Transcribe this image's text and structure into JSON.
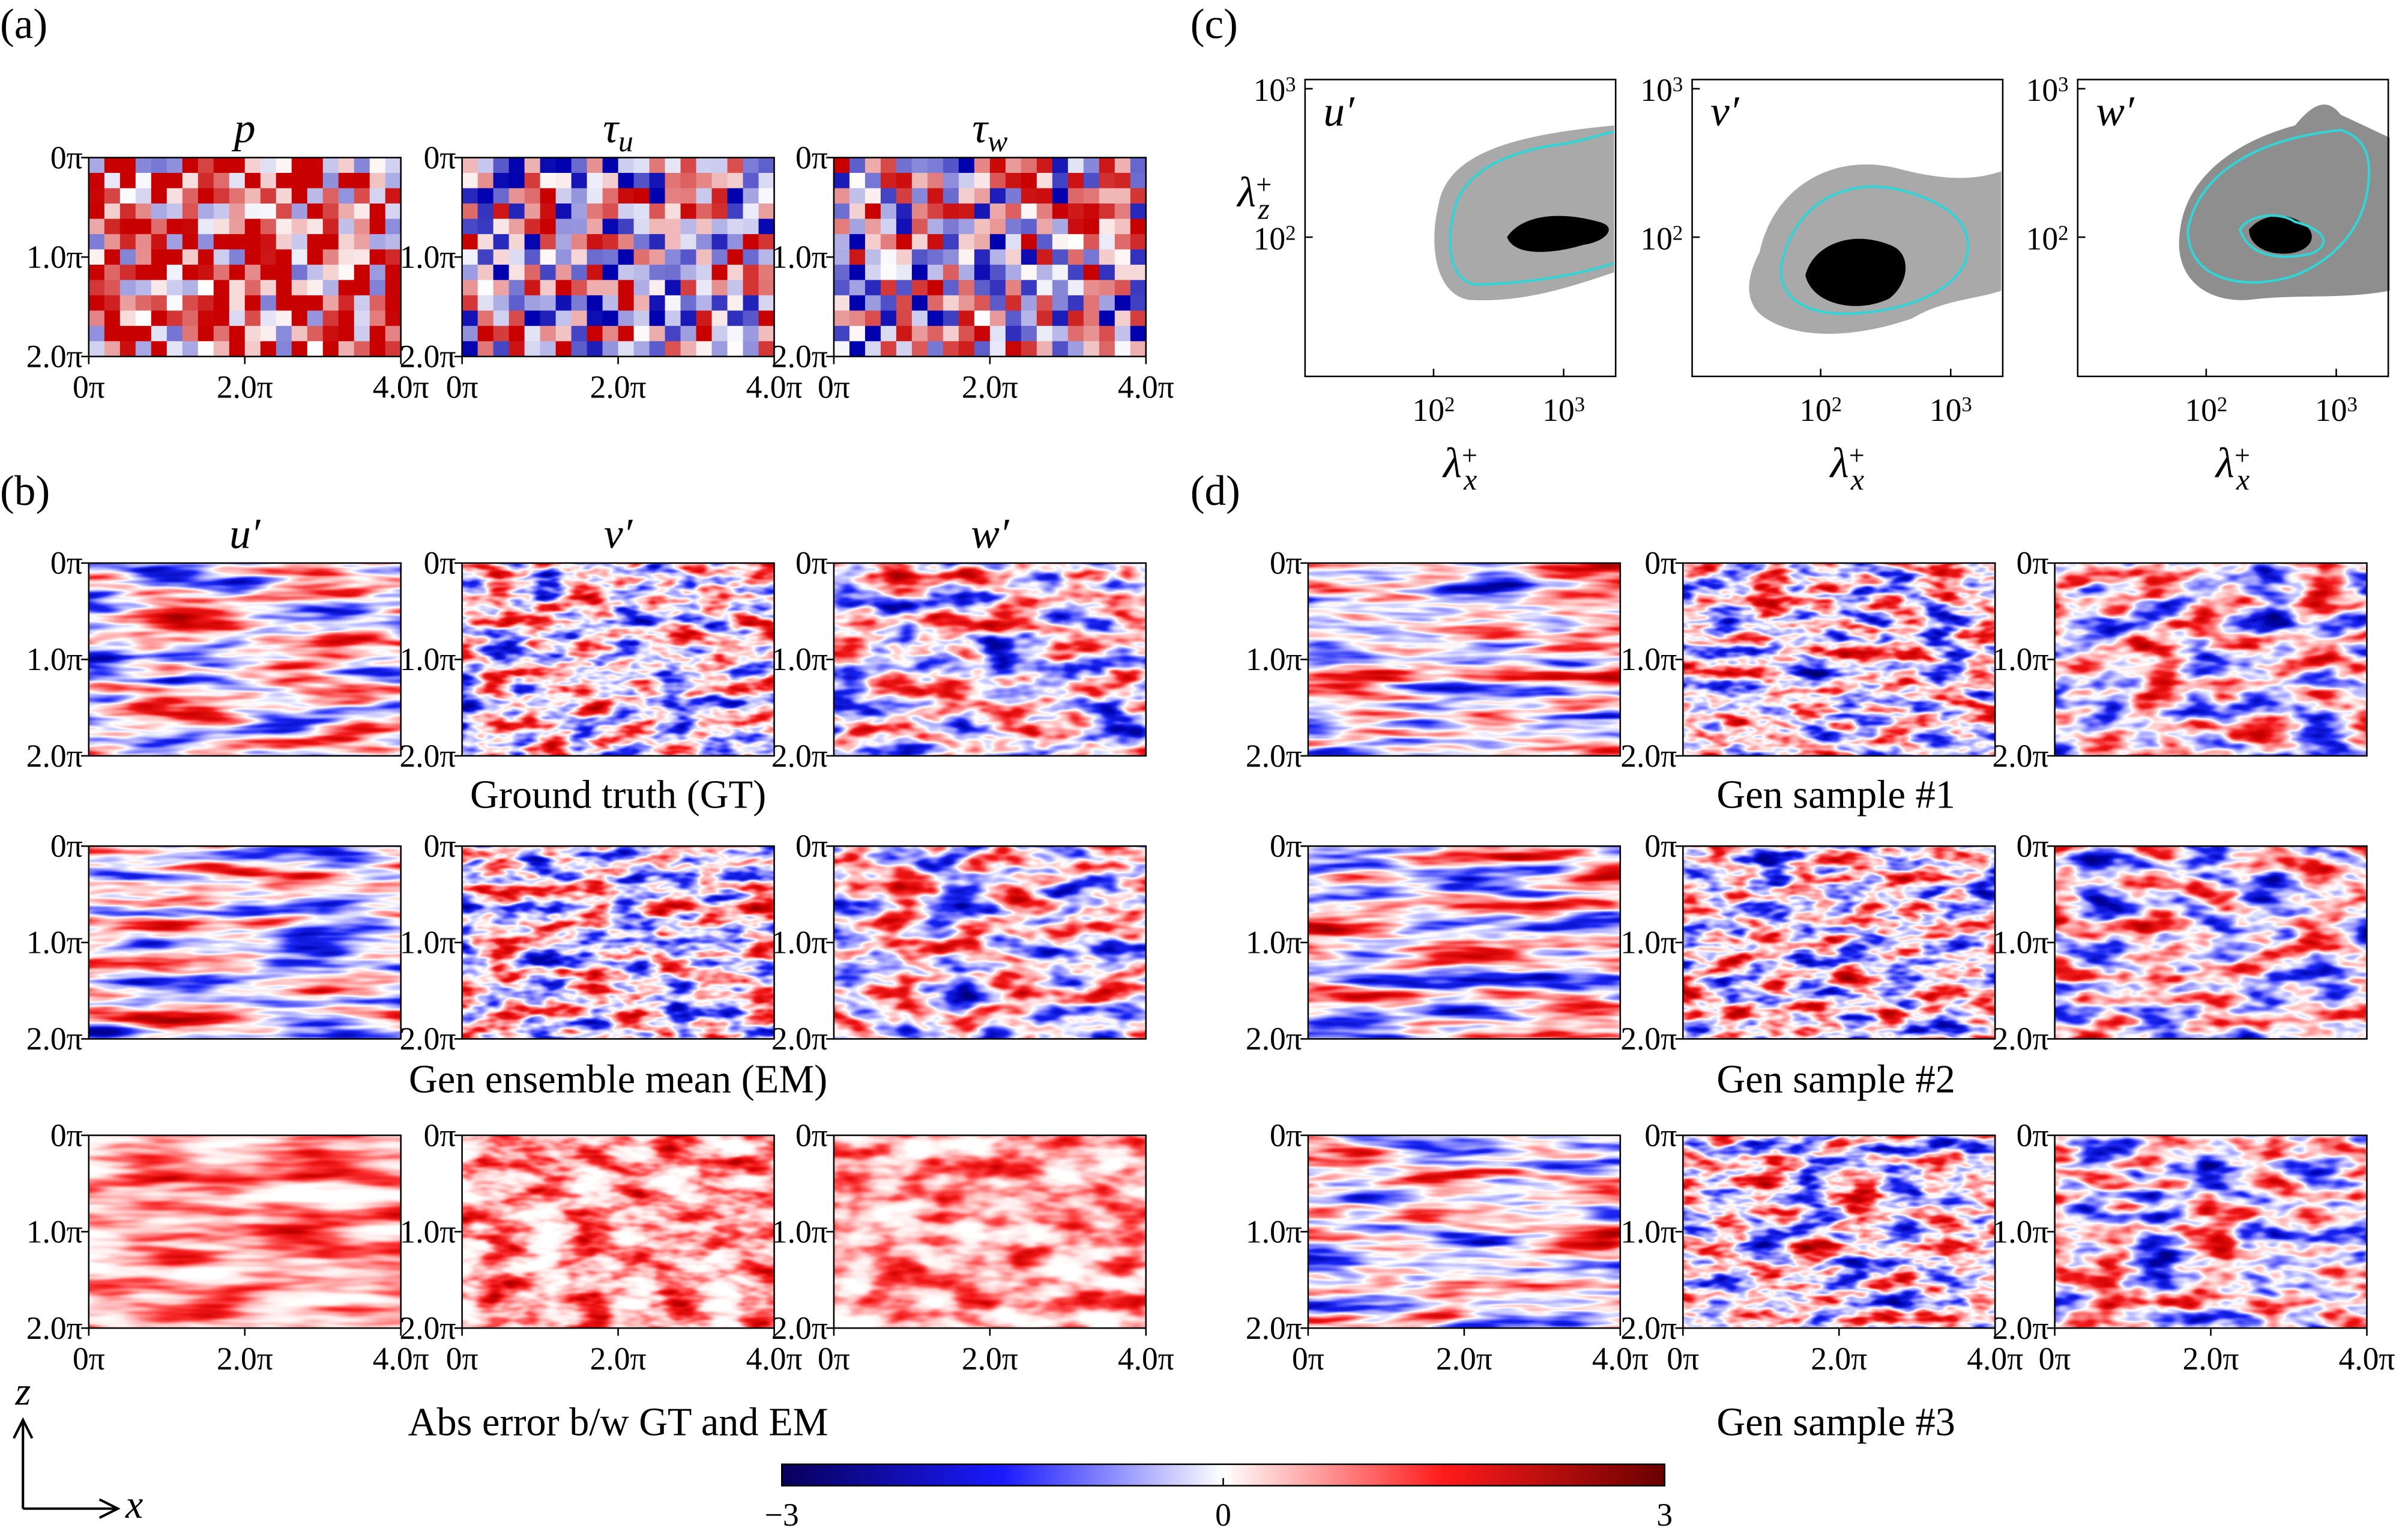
{
  "panel_labels": [
    "(a)",
    "(b)",
    "(c)",
    "(d)"
  ],
  "grid_ticks": {
    "y": [
      "0π",
      "1.0π",
      "2.0π"
    ],
    "x": [
      "0π",
      "2.0π",
      "4.0π"
    ]
  },
  "panel_a": {
    "titles": [
      {
        "symbol": "p"
      },
      {
        "symbol": "τ",
        "subscript": "u"
      },
      {
        "symbol": "τ",
        "subscript": "w"
      }
    ]
  },
  "panel_b": {
    "columns": [
      "u′",
      "v′",
      "w′"
    ],
    "captions": [
      "Ground truth (GT)",
      "Gen ensemble mean (EM)",
      "Abs error b/w GT and EM"
    ]
  },
  "panel_c": {
    "panels": [
      "u′",
      "v′",
      "w′"
    ],
    "tick_base": "10",
    "y_exponents": [
      "3",
      "2"
    ],
    "x_exponents": [
      "2",
      "3"
    ],
    "xlabel": {
      "symbol": "λ",
      "superscript": "+",
      "subscript": "x"
    },
    "ylabel": {
      "symbol": "λ",
      "superscript": "+",
      "subscript": "z"
    }
  },
  "panel_d": {
    "captions": [
      "Gen sample #1",
      "Gen sample #2",
      "Gen sample #3"
    ]
  },
  "axes": {
    "vertical": "z",
    "horizontal": "x"
  },
  "colorbar": {
    "lim": [
      -3,
      3
    ],
    "ticks": [
      {
        "value": -3,
        "label": "−3"
      },
      0,
      3
    ]
  }
}
